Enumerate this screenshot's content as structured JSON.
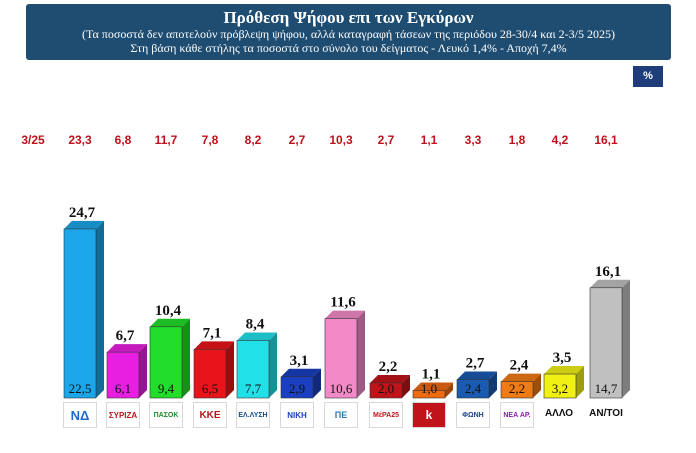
{
  "header": {
    "title": "Πρόθεση Ψήφου επι των Εγκύρων",
    "subtitle1": "(Τα ποσοστά δεν αποτελούν πρόβλεψη ψήφου, αλλά καταγραφή τάσεων της περιόδου  28-30/4 και 2-3/5 2025)",
    "subtitle2": "Στη βάση κάθε στήλης τα ποσοστά στο σύνολο του δείγματος - Λευκό 1,4% - Αποχή 7,4%"
  },
  "percent_badge": "%",
  "previous": {
    "label": "3/25",
    "values": [
      "23,3",
      "6,8",
      "11,7",
      "7,8",
      "8,2",
      "2,7",
      "10,3",
      "2,7",
      "1,1",
      "3,3",
      "1,8",
      "4,2",
      "16,1"
    ]
  },
  "logo_texts": {
    "nd": "ΝΔ",
    "syriza": "ΣΥΡΙΖΑ",
    "pasok": "ΠΑΣΟΚ",
    "kke": "ΚΚΕ",
    "ellisi": "ΕΛ.ΛΥΣΗ",
    "niki": "ΝΙΚΗ",
    "pe": "ΠΕ",
    "mera25": "ΜέΡΑ25",
    "k": "k",
    "foni": "ΦΩΝΗ",
    "nea_aristera": "ΝΕΑ ΑΡ."
  },
  "other_label": "ΑΛΛΟ",
  "undecided_label": "ΑΝ/ΤΟΙ",
  "chart_data": {
    "type": "bar",
    "categories": [
      "ΝΔ",
      "ΣΥΡΙΖΑ",
      "ΠΑΣΟΚ",
      "ΚΚΕ",
      "Ελληνική Λύση",
      "Νίκη",
      "Πλεύση Ελευθερίας",
      "ΜέΡΑ25",
      "Κίνημα",
      "Φωνή Λογικής",
      "Νέα Αριστερά",
      "ΑΛΛΟ",
      "ΑΝ/ΤΟΙ"
    ],
    "values_valid": [
      24.7,
      6.7,
      10.4,
      7.1,
      8.4,
      3.1,
      11.6,
      2.2,
      1.1,
      2.7,
      2.4,
      3.5,
      16.1
    ],
    "labels_valid": [
      "24,7",
      "6,7",
      "10,4",
      "7,1",
      "8,4",
      "3,1",
      "11,6",
      "2,2",
      "1,1",
      "2,7",
      "2,4",
      "3,5",
      "16,1"
    ],
    "values_sample": [
      22.5,
      6.1,
      9.4,
      6.5,
      7.7,
      2.9,
      10.6,
      2.0,
      1.0,
      2.4,
      2.2,
      3.2,
      14.7
    ],
    "labels_sample": [
      "22,5",
      "6,1",
      "9,4",
      "6,5",
      "7,7",
      "2,9",
      "10,6",
      "2,0",
      "1,0",
      "2,4",
      "2,2",
      "3,2",
      "14,7"
    ],
    "colors": [
      "#1aa6e8",
      "#e81ee0",
      "#22dd2a",
      "#e8141a",
      "#22e0e8",
      "#1a3fc0",
      "#f28ac8",
      "#c0141a",
      "#f06a10",
      "#1a5ab0",
      "#f07a14",
      "#f0f014",
      "#c0c0c0"
    ],
    "ylim": [
      0,
      26
    ]
  }
}
